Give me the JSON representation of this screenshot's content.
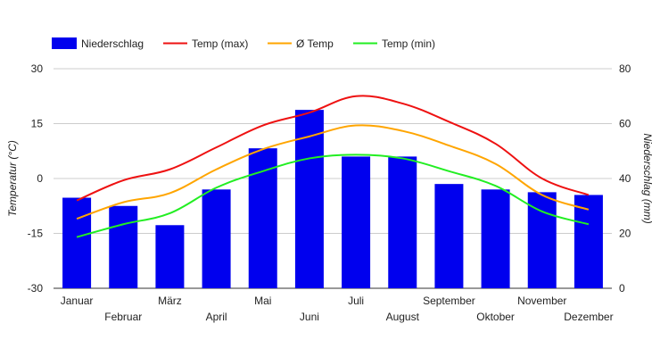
{
  "chart_data": {
    "type": "bar",
    "categories": [
      "Januar",
      "Februar",
      "März",
      "April",
      "Mai",
      "Juni",
      "Juli",
      "August",
      "September",
      "Oktober",
      "November",
      "Dezember"
    ],
    "series": [
      {
        "name": "Niederschlag",
        "type": "bar",
        "axis": "right",
        "color": "#0000ee",
        "values": [
          33,
          30,
          23,
          36,
          51,
          65,
          48,
          48,
          38,
          36,
          35,
          34
        ]
      },
      {
        "name": "Temp (max)",
        "type": "line",
        "axis": "left",
        "color": "#ee1111",
        "values": [
          -6,
          -0.5,
          2.5,
          8.5,
          14.5,
          18,
          22.5,
          20.5,
          15.5,
          9.5,
          0,
          -4.5
        ]
      },
      {
        "name": "Ø Temp",
        "type": "line",
        "axis": "left",
        "color": "#ffa500",
        "values": [
          -11,
          -6.5,
          -4,
          2.5,
          8,
          11.5,
          14.5,
          13,
          9,
          4,
          -4.5,
          -8.5
        ]
      },
      {
        "name": "Temp (min)",
        "type": "line",
        "axis": "left",
        "color": "#22ee22",
        "values": [
          -16,
          -12.5,
          -9.5,
          -2.5,
          2,
          5.5,
          6.5,
          5.5,
          2,
          -2,
          -9,
          -12.5
        ]
      }
    ],
    "y_left": {
      "label": "Temperatur (°C)",
      "min": -30,
      "max": 30,
      "ticks": [
        "30",
        "15",
        "0",
        "-15",
        "-30"
      ]
    },
    "y_right": {
      "label": "Niederschlag (mm)",
      "min": 0,
      "max": 80,
      "ticks": [
        "80",
        "60",
        "40",
        "20",
        "0"
      ]
    },
    "grid": true,
    "legend": "top-left"
  }
}
